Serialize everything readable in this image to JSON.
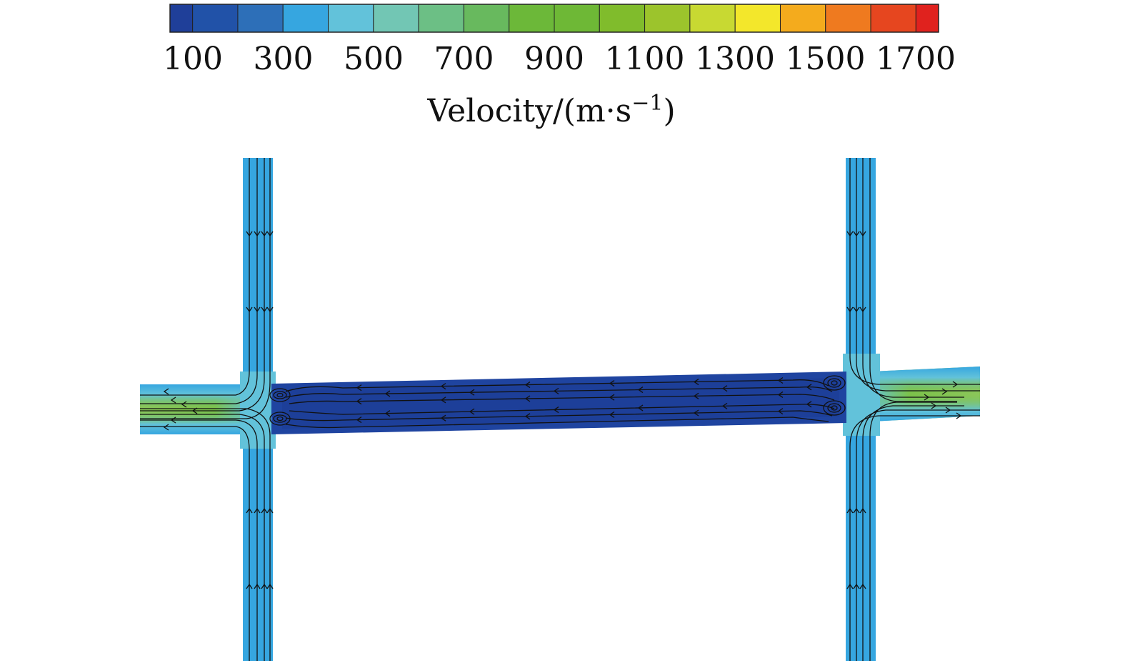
{
  "colorbar": {
    "colors": [
      "#1f3f99",
      "#2152a8",
      "#2d6fb8",
      "#36a6e0",
      "#62c2da",
      "#72c6b4",
      "#6cbf85",
      "#68b95e",
      "#6cb839",
      "#6eb836",
      "#80bc2c",
      "#9cc42c",
      "#c8d932",
      "#f3e72b",
      "#f4ab1d",
      "#ef7a1f",
      "#e6461f",
      "#e0221e"
    ],
    "ticks": [
      "100",
      "300",
      "500",
      "700",
      "900",
      "1100",
      "1300",
      "1500",
      "1700"
    ],
    "title": "Velocity/(m·s",
    "title_sup": "−1",
    "title_close": ")"
  },
  "field": {
    "channel_color": "#1f44a0",
    "branch_color": "#36a6e0",
    "jet_color": "#7cc24a",
    "transition_color": "#62c2da"
  }
}
